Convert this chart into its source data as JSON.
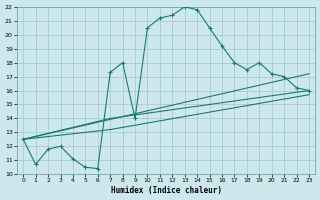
{
  "xlabel": "Humidex (Indice chaleur)",
  "bg_color": "#cce8ec",
  "grid_color": "#aacccc",
  "line_color": "#1a7a6e",
  "xlim": [
    -0.5,
    23.5
  ],
  "ylim": [
    10,
    22
  ],
  "xticks": [
    0,
    1,
    2,
    3,
    4,
    5,
    6,
    7,
    8,
    9,
    10,
    11,
    12,
    13,
    14,
    15,
    16,
    17,
    18,
    19,
    20,
    21,
    22,
    23
  ],
  "yticks": [
    10,
    11,
    12,
    13,
    14,
    15,
    16,
    17,
    18,
    19,
    20,
    21,
    22
  ],
  "main_x": [
    0,
    1,
    2,
    3,
    4,
    5,
    6,
    7,
    8,
    9,
    10,
    11,
    12,
    13,
    14,
    15,
    16,
    17,
    18,
    19,
    20,
    21,
    22,
    23
  ],
  "main_y": [
    12.5,
    10.7,
    11.8,
    12.0,
    11.1,
    10.5,
    10.4,
    17.3,
    18.0,
    14.0,
    20.5,
    21.2,
    21.4,
    22.0,
    21.8,
    20.5,
    19.2,
    18.0,
    17.5,
    18.0,
    17.2,
    17.0,
    16.2,
    16.0
  ],
  "trend1_x": [
    0,
    23
  ],
  "trend1_y": [
    12.5,
    17.2
  ],
  "trend2_x": [
    0,
    7,
    23
  ],
  "trend2_y": [
    12.5,
    14.0,
    16.0
  ],
  "trend3_x": [
    0,
    7,
    23
  ],
  "trend3_y": [
    12.5,
    13.2,
    15.7
  ]
}
